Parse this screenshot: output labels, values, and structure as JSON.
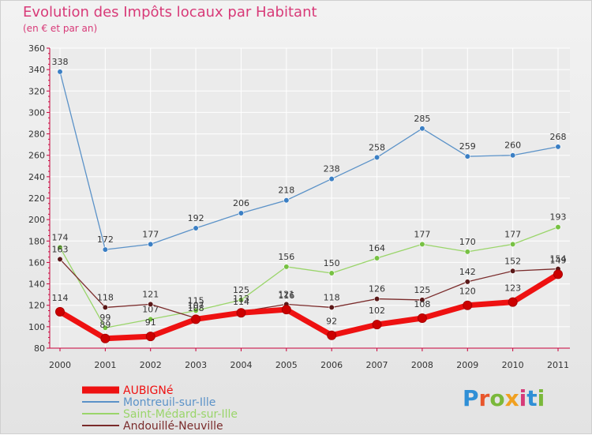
{
  "title": "Evolution des Impôts locaux par Habitant",
  "subtitle": "(en € et par an)",
  "logo": {
    "text": "Proxiti",
    "letter_colors": [
      "#2f8fd6",
      "#e8562c",
      "#7ab83a",
      "#f0a020",
      "#d63a78",
      "#2f8fd6",
      "#7ab83a"
    ]
  },
  "colors": {
    "title": "#d83a78",
    "axis": "#c9003a",
    "label": "#333333",
    "grid": "#ffffff"
  },
  "chart_data": {
    "type": "line",
    "title": "Evolution des Impôts locaux par Habitant",
    "subtitle": "(en € et par an)",
    "categories": [
      "2000",
      "2001",
      "2002",
      "2003",
      "2004",
      "2005",
      "2006",
      "2007",
      "2008",
      "2009",
      "2010",
      "2011"
    ],
    "ylim": [
      80,
      360
    ],
    "yticks": [
      80,
      100,
      120,
      140,
      160,
      180,
      200,
      220,
      240,
      260,
      280,
      300,
      320,
      340,
      360
    ],
    "grid": true,
    "legend_position": "bottom-left",
    "series": [
      {
        "name": "AUBIGNé",
        "color": "#ee1111",
        "marker": "#cc0000",
        "values": [
          114,
          89,
          91,
          107,
          113,
          116,
          92,
          102,
          108,
          120,
          123,
          149
        ],
        "bold": true
      },
      {
        "name": "Montreuil-sur-Ille",
        "color": "#5b92c8",
        "marker": "#3b7fc4",
        "values": [
          338,
          172,
          177,
          192,
          206,
          218,
          238,
          258,
          285,
          259,
          260,
          268
        ],
        "bold": false
      },
      {
        "name": "Saint-Médard-sur-Ille",
        "color": "#9ad56a",
        "marker": "#77c143",
        "values": [
          174,
          99,
          107,
          115,
          125,
          156,
          150,
          164,
          177,
          170,
          177,
          193
        ],
        "bold": false
      },
      {
        "name": "Andouillé-Neuville",
        "color": "#7a2b2b",
        "marker": "#5a1818",
        "values": [
          163,
          118,
          121,
          108,
          114,
          121,
          118,
          126,
          125,
          142,
          152,
          154
        ],
        "bold": false
      }
    ]
  }
}
